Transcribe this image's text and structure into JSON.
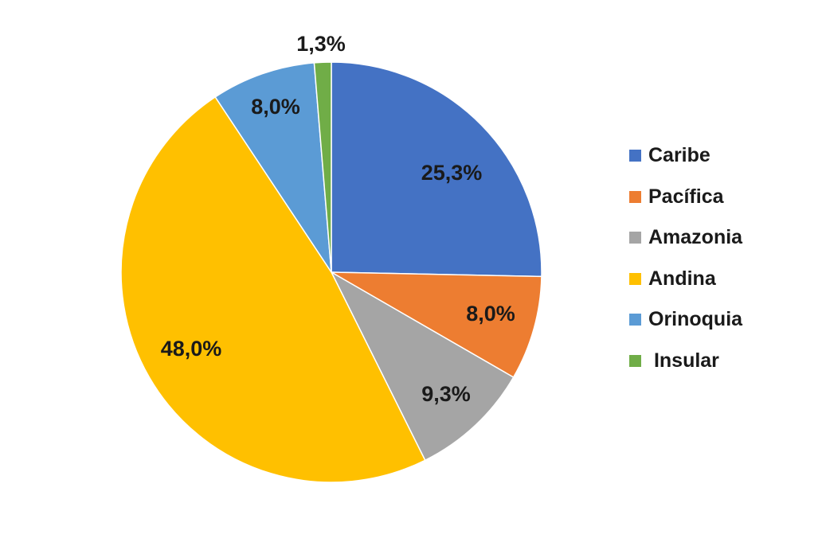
{
  "chart_data": {
    "type": "pie",
    "title": "",
    "unit": "%",
    "slices": [
      {
        "name": "Caribe",
        "value": 25.3,
        "label": "25,3%",
        "color": "#4472C4"
      },
      {
        "name": "Pacífica",
        "value": 8.0,
        "label": "8,0%",
        "color": "#ED7D31"
      },
      {
        "name": "Amazonia",
        "value": 9.3,
        "label": "9,3%",
        "color": "#A5A5A5"
      },
      {
        "name": "Andina",
        "value": 48.0,
        "label": "48,0%",
        "color": "#FFC000"
      },
      {
        "name": "Orinoquia",
        "value": 8.0,
        "label": "8,0%",
        "color": "#5B9BD5"
      },
      {
        "name": "Insular",
        "value": 1.3,
        "label": "1,3%",
        "color": "#70AD47"
      }
    ],
    "start_angle": "12 o'clock",
    "direction": "clockwise",
    "legend_position": "right"
  },
  "legend": {
    "items": [
      {
        "label": "Caribe",
        "color": "#4472C4"
      },
      {
        "label": "Pacífica",
        "color": "#ED7D31"
      },
      {
        "label": "Amazonia",
        "color": "#A5A5A5"
      },
      {
        "label": "Andina",
        "color": "#FFC000"
      },
      {
        "label": "Orinoquia",
        "color": "#5B9BD5"
      },
      {
        "label": " Insular",
        "color": "#70AD47"
      }
    ]
  }
}
